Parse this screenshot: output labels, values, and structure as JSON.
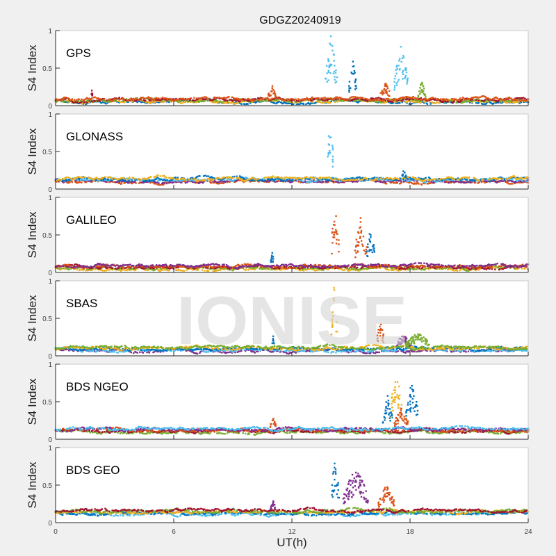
{
  "chart_data": {
    "type": "scatter",
    "title": "GDGZ20240919",
    "xlabel": "UT(h)",
    "ylabel": "S4 Index",
    "xlim": [
      0,
      24
    ],
    "ylim": [
      0,
      1
    ],
    "xticks": [
      "0",
      "6",
      "12",
      "18",
      "24"
    ],
    "yticks": [
      "0",
      "0.5",
      "1"
    ],
    "watermark": "IONISE",
    "colors": [
      "#0072BD",
      "#D95319",
      "#EDB120",
      "#7E2F8E",
      "#77AC30",
      "#4DBEEE",
      "#A2142F"
    ],
    "panels": [
      {
        "name": "GPS",
        "baseline": 0.07,
        "events": [
          {
            "color": 6,
            "x": [
              1.8,
              1.9
            ],
            "peak": 0.22
          },
          {
            "color": 1,
            "x": [
              10.8,
              11.2
            ],
            "peak": 0.27
          },
          {
            "color": 5,
            "x": [
              13.7,
              14.3
            ],
            "peak": 1.0
          },
          {
            "color": 0,
            "x": [
              14.9,
              15.3
            ],
            "peak": 0.6
          },
          {
            "color": 1,
            "x": [
              16.5,
              17.0
            ],
            "peak": 0.32
          },
          {
            "color": 5,
            "x": [
              17.2,
              17.9
            ],
            "peak": 0.85
          },
          {
            "color": 4,
            "x": [
              18.4,
              18.8
            ],
            "peak": 0.32
          }
        ]
      },
      {
        "name": "GLONASS",
        "baseline": 0.12,
        "events": [
          {
            "color": 5,
            "x": [
              13.8,
              14.1
            ],
            "peak": 1.0
          },
          {
            "color": 0,
            "x": [
              17.6,
              17.8
            ],
            "peak": 0.28
          }
        ]
      },
      {
        "name": "GALILEO",
        "baseline": 0.07,
        "events": [
          {
            "color": 0,
            "x": [
              10.9,
              11.1
            ],
            "peak": 0.27
          },
          {
            "color": 1,
            "x": [
              14.0,
              14.4
            ],
            "peak": 0.95
          },
          {
            "color": 1,
            "x": [
              15.2,
              15.8
            ],
            "peak": 0.75
          },
          {
            "color": 0,
            "x": [
              15.8,
              16.2
            ],
            "peak": 0.62
          }
        ]
      },
      {
        "name": "SBAS",
        "baseline": 0.09,
        "events": [
          {
            "color": 0,
            "x": [
              11.0,
              11.1
            ],
            "peak": 0.28
          },
          {
            "color": 2,
            "x": [
              14.0,
              14.3
            ],
            "peak": 0.95
          },
          {
            "color": 1,
            "x": [
              16.3,
              16.7
            ],
            "peak": 0.5
          },
          {
            "color": 3,
            "x": [
              17.3,
              18.0
            ],
            "peak": 0.3
          },
          {
            "color": 4,
            "x": [
              17.8,
              19.0
            ],
            "peak": 0.32
          }
        ]
      },
      {
        "name": "BDS NGEO",
        "baseline": 0.12,
        "events": [
          {
            "color": 1,
            "x": [
              10.9,
              11.2
            ],
            "peak": 0.3
          },
          {
            "color": 0,
            "x": [
              16.6,
              17.1
            ],
            "peak": 0.6
          },
          {
            "color": 2,
            "x": [
              17.0,
              17.6
            ],
            "peak": 0.95
          },
          {
            "color": 1,
            "x": [
              17.2,
              17.9
            ],
            "peak": 0.42
          },
          {
            "color": 0,
            "x": [
              17.8,
              18.4
            ],
            "peak": 0.82
          }
        ]
      },
      {
        "name": "BDS GEO",
        "baseline": 0.14,
        "events": [
          {
            "color": 3,
            "x": [
              10.9,
              11.2
            ],
            "peak": 0.3
          },
          {
            "color": 0,
            "x": [
              14.0,
              14.4
            ],
            "peak": 0.95
          },
          {
            "color": 3,
            "x": [
              14.6,
              15.9
            ],
            "peak": 0.75
          },
          {
            "color": 1,
            "x": [
              16.4,
              17.2
            ],
            "peak": 0.52
          }
        ]
      }
    ]
  }
}
